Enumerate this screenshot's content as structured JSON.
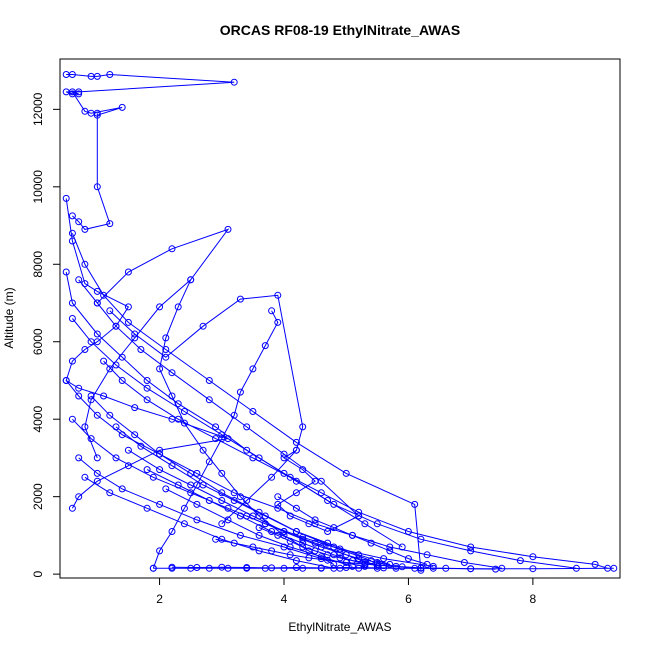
{
  "chart_data": {
    "type": "line",
    "title": "ORCAS RF08-19 EthylNitrate_AWAS",
    "xlabel": "EthylNitrate_AWAS",
    "ylabel": "Altitude (m)",
    "xlim": [
      0.4,
      9.4
    ],
    "ylim": [
      -100,
      13300
    ],
    "x_ticks": [
      "2",
      "4",
      "6",
      "8"
    ],
    "x_tick_values": [
      2,
      4,
      6,
      8
    ],
    "y_ticks": [
      "0",
      "2000",
      "4000",
      "6000",
      "8000",
      "10000",
      "12000"
    ],
    "y_tick_values": [
      0,
      2000,
      4000,
      6000,
      8000,
      10000,
      12000
    ],
    "series_color": "#0000ff",
    "marker": "open-circle",
    "grid": false,
    "series": [
      {
        "x": [
          0.5,
          0.6,
          0.9,
          1.0,
          1.2,
          3.2,
          0.7,
          0.5,
          0.6,
          0.7,
          0.6,
          0.8,
          0.9,
          1.4,
          1.0,
          1.0,
          1.0,
          1.2,
          0.8,
          0.7,
          0.6
        ],
        "y": [
          12900,
          12900,
          12850,
          12850,
          12900,
          12700,
          12450,
          12450,
          12400,
          12400,
          12450,
          11950,
          11900,
          12050,
          11850,
          11900,
          10000,
          9050,
          8900,
          9100,
          9250
        ]
      },
      {
        "x": [
          0.5,
          0.6,
          0.8,
          1.0,
          1.5,
          1.3,
          1.0,
          0.8,
          0.6,
          0.5,
          0.7,
          1.1,
          1.6,
          2.2,
          3.1,
          2.0,
          1.5,
          1.0,
          0.7,
          0.6
        ],
        "y": [
          9700,
          8600,
          7500,
          7300,
          6900,
          6400,
          6000,
          5800,
          5500,
          5000,
          4800,
          4600,
          4300,
          4000,
          3500,
          3200,
          2800,
          2400,
          2000,
          1700
        ]
      },
      {
        "x": [
          0.5,
          0.6,
          1.0,
          1.4,
          1.8,
          2.3,
          2.9,
          3.4,
          4.0,
          4.6,
          5.2,
          6.0,
          7.0,
          8.0,
          9.0,
          9.2
        ],
        "y": [
          7800,
          7000,
          6200,
          5600,
          5000,
          4400,
          3800,
          3200,
          2600,
          2100,
          1600,
          1100,
          700,
          450,
          250,
          150
        ]
      },
      {
        "x": [
          0.6,
          0.9,
          1.3,
          1.8,
          2.4,
          3.0,
          3.6,
          4.2,
          4.8,
          5.5,
          6.2,
          7.0,
          7.8,
          8.7
        ],
        "y": [
          6600,
          6000,
          5400,
          4800,
          4200,
          3600,
          3000,
          2400,
          1800,
          1300,
          900,
          600,
          350,
          150
        ]
      },
      {
        "x": [
          0.5,
          0.7,
          1.0,
          1.4,
          2.0,
          2.6,
          3.2,
          3.9,
          4.5,
          5.1,
          5.7,
          6.3,
          6.9,
          7.5
        ],
        "y": [
          5000,
          4600,
          4100,
          3600,
          3100,
          2600,
          2100,
          1700,
          1300,
          1000,
          700,
          500,
          300,
          150
        ]
      },
      {
        "x": [
          0.6,
          0.9,
          1.3,
          1.9,
          2.5,
          3.1,
          3.7,
          4.3,
          4.9,
          5.6,
          6.4
        ],
        "y": [
          4000,
          3500,
          3000,
          2500,
          2100,
          1700,
          1300,
          950,
          650,
          400,
          200
        ]
      },
      {
        "x": [
          0.7,
          1.0,
          1.4,
          2.0,
          2.6,
          3.3,
          4.0,
          4.6,
          5.3
        ],
        "y": [
          3000,
          2600,
          2200,
          1800,
          1400,
          1000,
          700,
          400,
          200
        ]
      },
      {
        "x": [
          0.8,
          1.2,
          1.8,
          2.4,
          3.0,
          3.6,
          4.2,
          4.8
        ],
        "y": [
          2500,
          2100,
          1700,
          1300,
          900,
          600,
          350,
          150
        ]
      },
      {
        "x": [
          0.6,
          0.8,
          1.1,
          1.5,
          2.1,
          2.8,
          3.5,
          4.2,
          5.0,
          6.1,
          6.2
        ],
        "y": [
          8800,
          8000,
          7200,
          6500,
          5800,
          5000,
          4200,
          3400,
          2600,
          1800,
          100
        ]
      },
      {
        "x": [
          0.7,
          1.0,
          1.3,
          1.7,
          2.2,
          2.8,
          3.4,
          4.0,
          4.6,
          5.2
        ],
        "y": [
          7600,
          7000,
          6400,
          5800,
          5200,
          4500,
          3800,
          3100,
          2400,
          1500
        ]
      },
      {
        "x": [
          1.0,
          1.5,
          2.2,
          3.1,
          2.5,
          2.0,
          1.6,
          1.2,
          0.9,
          0.8,
          1.0
        ],
        "y": [
          7000,
          7800,
          8400,
          8900,
          7600,
          6900,
          6100,
          5300,
          4500,
          3800,
          3000
        ]
      },
      {
        "x": [
          1.2,
          1.6,
          2.1,
          2.7,
          3.3,
          3.9,
          4.3,
          4.2,
          3.8,
          3.4,
          3.0
        ],
        "y": [
          6800,
          6200,
          5600,
          6400,
          7100,
          7200,
          3800,
          3200,
          2500,
          1900,
          1300
        ]
      },
      {
        "x": [
          3.8,
          3.9,
          3.7,
          3.5,
          3.3,
          3.2,
          3.0,
          2.8,
          2.6,
          2.4,
          2.2,
          2.0,
          1.9
        ],
        "y": [
          6800,
          6500,
          5900,
          5300,
          4700,
          4100,
          3500,
          2900,
          2300,
          1700,
          1100,
          600,
          150
        ]
      },
      {
        "x": [
          2.5,
          2.3,
          2.1,
          2.0,
          2.2,
          2.4,
          2.7,
          3.0,
          3.3,
          3.6,
          4.0,
          4.4,
          4.8
        ],
        "y": [
          7600,
          6900,
          6100,
          5300,
          4600,
          3900,
          3200,
          2600,
          2000,
          1500,
          1000,
          600,
          250
        ]
      },
      {
        "x": [
          1.1,
          1.4,
          1.8,
          2.3,
          2.9,
          3.5,
          4.1,
          4.7,
          5.3,
          5.9
        ],
        "y": [
          5500,
          5000,
          4500,
          4000,
          3500,
          3000,
          2500,
          1900,
          1300,
          700
        ]
      },
      {
        "x": [
          0.9,
          1.2,
          1.6,
          2.0,
          2.5,
          3.0,
          3.6,
          4.2,
          4.8,
          5.4
        ],
        "y": [
          4600,
          4100,
          3600,
          3100,
          2600,
          2100,
          1600,
          1100,
          700,
          350
        ]
      },
      {
        "x": [
          1.3,
          1.7,
          2.2,
          2.7,
          3.2,
          3.7,
          4.2,
          4.7,
          5.2,
          5.7
        ],
        "y": [
          3800,
          3300,
          2800,
          2300,
          1900,
          1500,
          1100,
          800,
          500,
          250
        ]
      },
      {
        "x": [
          1.5,
          2.0,
          2.5,
          3.0,
          3.5,
          4.0,
          4.5,
          5.0,
          5.5
        ],
        "y": [
          3200,
          2700,
          2300,
          1900,
          1500,
          1100,
          800,
          500,
          200
        ]
      },
      {
        "x": [
          1.8,
          2.3,
          2.8,
          3.3,
          3.8,
          4.3,
          4.8,
          5.3
        ],
        "y": [
          2700,
          2300,
          1900,
          1500,
          1100,
          800,
          500,
          250
        ]
      },
      {
        "x": [
          2.1,
          2.6,
          3.1,
          3.6,
          4.1,
          4.6,
          5.1
        ],
        "y": [
          2200,
          1800,
          1400,
          1000,
          700,
          450,
          200
        ]
      },
      {
        "x": [
          1.9,
          2.2,
          2.5,
          2.8,
          3.1,
          3.4,
          3.7,
          4.0,
          4.3,
          4.6,
          4.9,
          5.2,
          5.5,
          5.8,
          6.1,
          6.4
        ],
        "y": [
          150,
          150,
          150,
          150,
          150,
          150,
          150,
          150,
          150,
          150,
          150,
          150,
          150,
          150,
          150,
          150
        ]
      },
      {
        "x": [
          2.2,
          2.6,
          3.0,
          3.4,
          3.8,
          4.2,
          4.6,
          5.0,
          5.6,
          6.2,
          7.0,
          8.0,
          9.3
        ],
        "y": [
          180,
          170,
          180,
          170,
          160,
          170,
          160,
          170,
          160,
          150,
          140,
          140,
          150
        ]
      },
      {
        "x": [
          2.9,
          3.2,
          3.5,
          3.8,
          4.1,
          4.4,
          4.7,
          5.0,
          5.3,
          5.6,
          5.9,
          6.2,
          6.6,
          7.0,
          7.4
        ],
        "y": [
          900,
          800,
          700,
          600,
          500,
          420,
          360,
          300,
          260,
          220,
          190,
          160,
          150,
          140,
          130
        ]
      },
      {
        "x": [
          3.4,
          3.7,
          4.0,
          4.3,
          4.6,
          4.9,
          5.2,
          5.5,
          5.8
        ],
        "y": [
          1500,
          1300,
          1100,
          900,
          700,
          550,
          400,
          300,
          200
        ]
      },
      {
        "x": [
          3.9,
          4.2,
          4.5,
          4.8,
          5.1,
          5.4,
          5.7,
          6.0,
          6.3
        ],
        "y": [
          2000,
          1700,
          1400,
          1200,
          1000,
          800,
          600,
          400,
          250
        ]
      },
      {
        "x": [
          4.2,
          4.0,
          4.3,
          4.5,
          4.2,
          3.9,
          4.1,
          4.4,
          4.7,
          5.2
        ],
        "y": [
          3200,
          3000,
          2700,
          2400,
          2100,
          1800,
          1500,
          1300,
          1100,
          1500
        ]
      },
      {
        "x": [
          3.6,
          3.9,
          4.1,
          4.3,
          4.5,
          4.7,
          4.9,
          5.1,
          5.3,
          5.5
        ],
        "y": [
          1200,
          1000,
          850,
          700,
          600,
          500,
          420,
          350,
          300,
          250
        ]
      }
    ]
  }
}
